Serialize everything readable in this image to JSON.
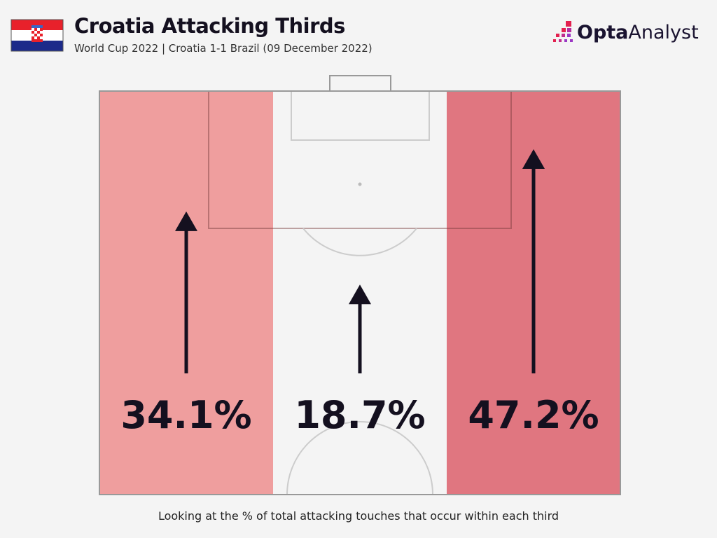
{
  "header": {
    "title": "Croatia Attacking Thirds",
    "subtitle": "World Cup 2022 | Croatia 1-1 Brazil (09 December 2022)",
    "flag": "croatia-flag"
  },
  "logo": {
    "bold": "Opta",
    "light": " Analyst"
  },
  "caption": "Looking at the % of total attacking touches that occur within each third",
  "chart_data": {
    "type": "pitch-thirds",
    "values": [
      34.1,
      18.7,
      47.2
    ],
    "labels": [
      "34.1%",
      "18.7%",
      "47.2%"
    ],
    "colors": [
      "#ef9e9e",
      "#f4f4f4",
      "#e07680"
    ]
  }
}
